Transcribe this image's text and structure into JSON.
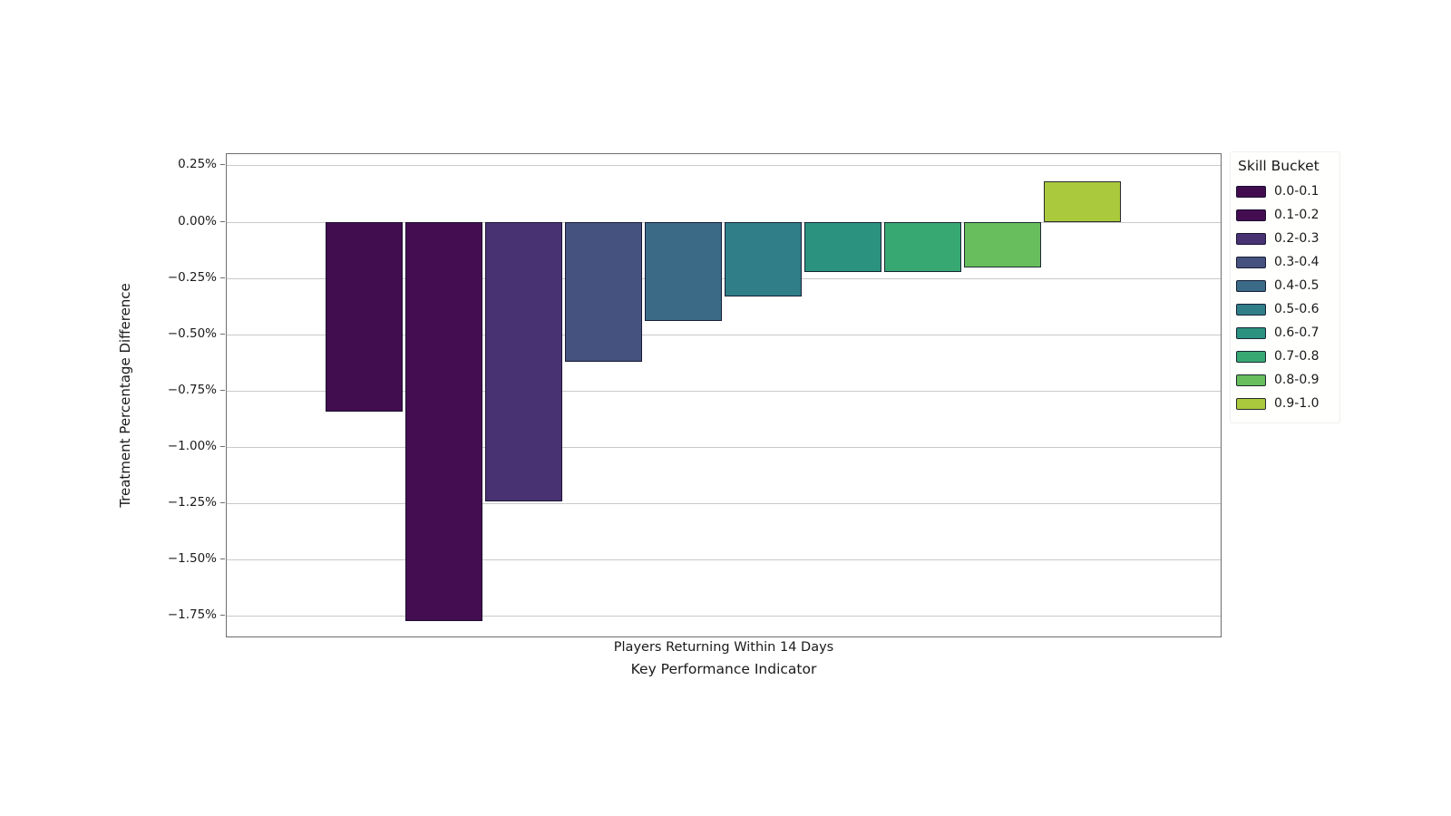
{
  "chart_data": {
    "type": "bar",
    "title": "",
    "xlabel": "Key Performance Indicator",
    "ylabel": "Treatment Percentage Difference",
    "x_categories": [
      "Players Returning Within 14 Days"
    ],
    "ylim": [
      -1.85,
      0.3
    ],
    "yticks": [
      0.25,
      0.0,
      -0.25,
      -0.5,
      -0.75,
      -1.0,
      -1.25,
      -1.5,
      -1.75
    ],
    "ytick_labels": [
      "0.25%",
      "0.00%",
      "−0.25%",
      "−0.50%",
      "−0.75%",
      "−1.00%",
      "−1.25%",
      "−1.50%",
      "−1.75%"
    ],
    "grid": "horizontal",
    "legend_title": "Skill Bucket",
    "legend_position": "outside-upper-right",
    "series": [
      {
        "name": "0.0-0.1",
        "value": -0.84,
        "color": "#420d4f"
      },
      {
        "name": "0.1-0.2",
        "value": -1.77,
        "color": "#450d51"
      },
      {
        "name": "0.2-0.3",
        "value": -1.24,
        "color": "#483272"
      },
      {
        "name": "0.3-0.4",
        "value": -0.62,
        "color": "#45517e"
      },
      {
        "name": "0.4-0.5",
        "value": -0.44,
        "color": "#3a6a86"
      },
      {
        "name": "0.5-0.6",
        "value": -0.33,
        "color": "#2f7e88"
      },
      {
        "name": "0.6-0.7",
        "value": -0.22,
        "color": "#2b9280"
      },
      {
        "name": "0.7-0.8",
        "value": -0.22,
        "color": "#38a873"
      },
      {
        "name": "0.8-0.9",
        "value": -0.2,
        "color": "#68bd5c"
      },
      {
        "name": "0.9-1.0",
        "value": 0.18,
        "color": "#abc93d"
      }
    ]
  }
}
